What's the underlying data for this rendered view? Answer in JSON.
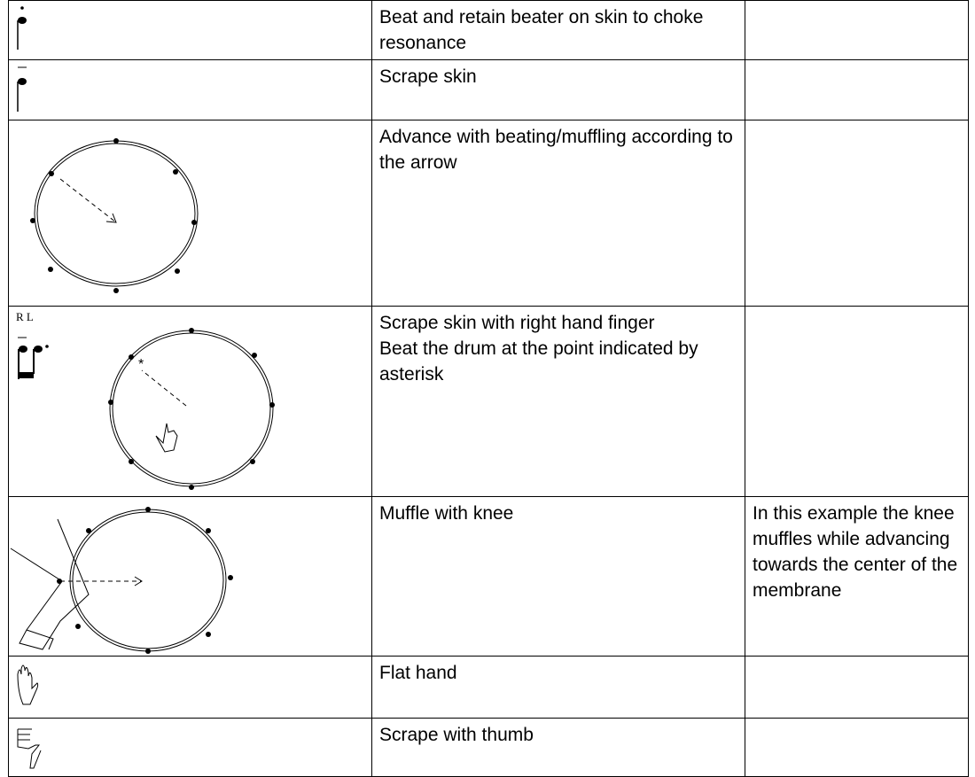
{
  "table": {
    "rows": [
      {
        "description": [
          "Beat and retain beater on skin to choke resonance"
        ]
      },
      {
        "description": [
          "Scrape skin"
        ]
      },
      {
        "description": [
          "Advance with beating/muffling according to the arrow"
        ]
      },
      {
        "symbol_label": "R L",
        "description": [
          "Scrape skin with right hand finger",
          "Beat the drum at the point indicated by asterisk"
        ]
      },
      {
        "description": [
          "Muffle with knee"
        ],
        "note": "In this example the knee muffles while advancing towards the center of the membrane"
      },
      {
        "description": [
          "Flat hand"
        ]
      },
      {
        "description": [
          "Scrape with thumb"
        ]
      }
    ]
  }
}
